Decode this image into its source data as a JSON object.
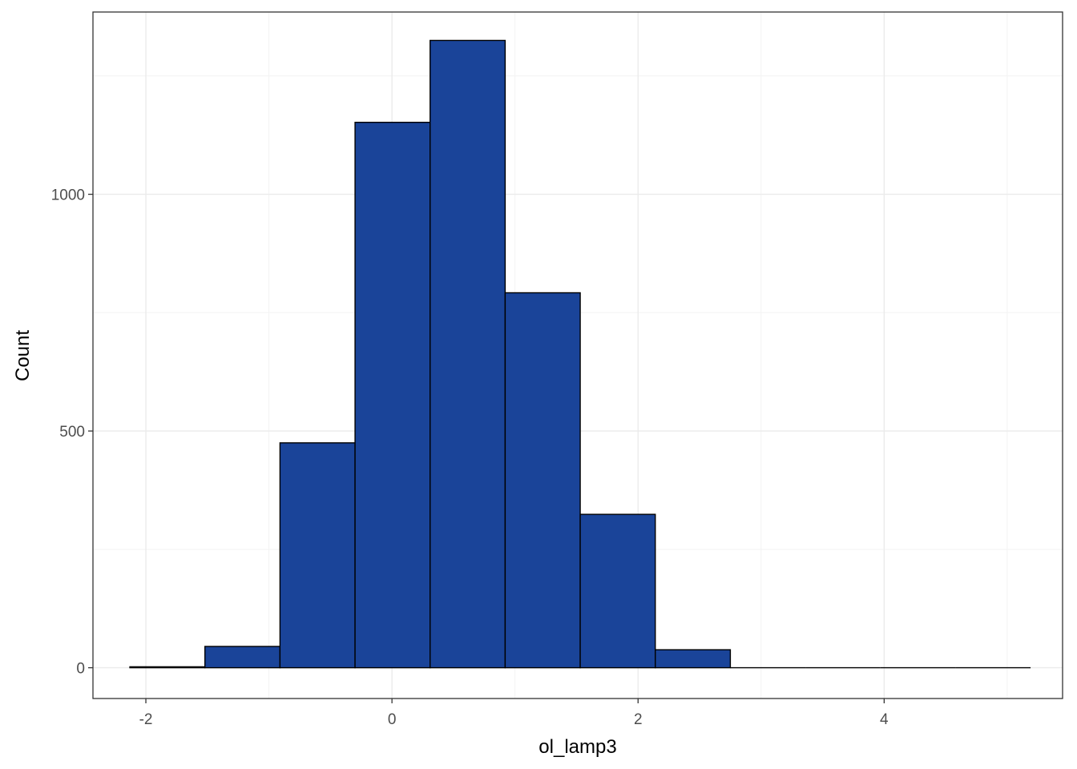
{
  "chart_data": {
    "type": "bar",
    "title": "",
    "xlabel": "ol_lamp3",
    "ylabel": "Count",
    "xlim": [
      -2.43,
      5.45
    ],
    "ylim": [
      -65,
      1385
    ],
    "x_ticks": [
      {
        "value": -2,
        "label": "-2"
      },
      {
        "value": 0,
        "label": "0"
      },
      {
        "value": 2,
        "label": "2"
      },
      {
        "value": 4,
        "label": "4"
      }
    ],
    "y_ticks": [
      {
        "value": 0,
        "label": "0"
      },
      {
        "value": 500,
        "label": "500"
      },
      {
        "value": 1000,
        "label": "1000"
      }
    ],
    "x_minor_gridlines": [
      -1,
      1,
      3,
      5
    ],
    "y_minor_gridlines": [
      250,
      750,
      1250
    ],
    "grid": true,
    "bins": [
      {
        "x0": -2.13,
        "x1": -1.52,
        "count": 2
      },
      {
        "x0": -1.52,
        "x1": -0.91,
        "count": 45
      },
      {
        "x0": -0.91,
        "x1": -0.3,
        "count": 475
      },
      {
        "x0": -0.3,
        "x1": 0.31,
        "count": 1152
      },
      {
        "x0": 0.31,
        "x1": 0.92,
        "count": 1325
      },
      {
        "x0": 0.92,
        "x1": 1.53,
        "count": 792
      },
      {
        "x0": 1.53,
        "x1": 2.14,
        "count": 324
      },
      {
        "x0": 2.14,
        "x1": 2.75,
        "count": 38
      },
      {
        "x0": 2.75,
        "x1": 3.36,
        "count": 0
      },
      {
        "x0": 3.36,
        "x1": 3.97,
        "count": 0
      },
      {
        "x0": 3.97,
        "x1": 4.58,
        "count": 0
      },
      {
        "x0": 4.58,
        "x1": 5.19,
        "count": 0
      }
    ],
    "colors": {
      "fill": "#1a4499",
      "outline": "#000000",
      "grid_major": "#ebebeb",
      "grid_minor": "#f3f3f3",
      "panel_border": "#333333",
      "tick_text": "#4d4d4d"
    }
  }
}
